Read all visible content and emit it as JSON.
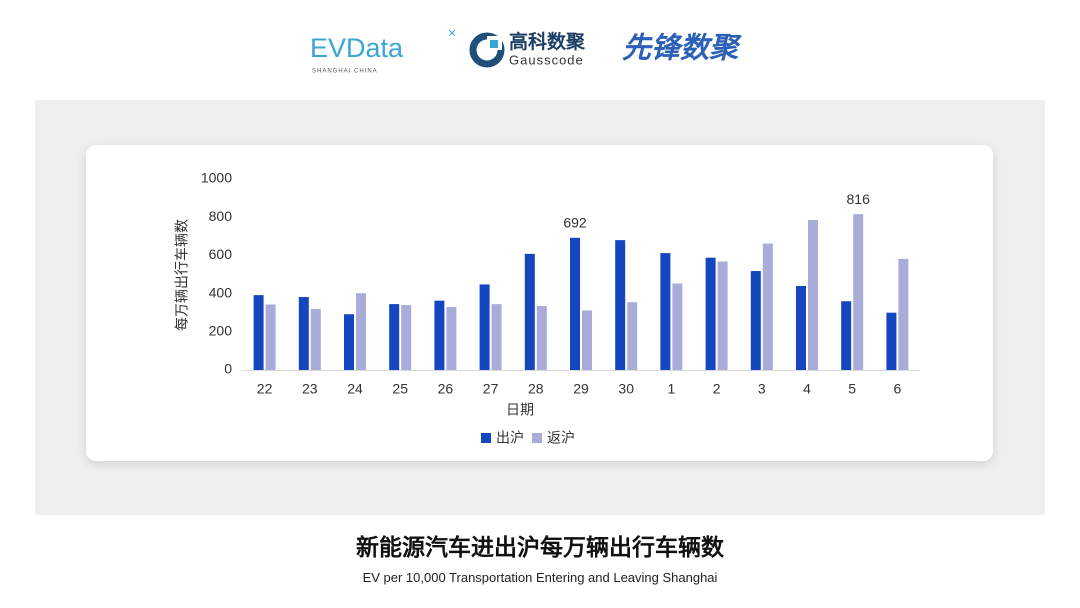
{
  "logos": {
    "evdata": "EVData",
    "evdata_sub": "SHANGHAI CHINA",
    "gauss": "高科数聚",
    "gauss_sub": "Gausscode",
    "pioneer": "先锋数聚"
  },
  "chart_data": {
    "type": "bar",
    "xlabel": "日期",
    "ylabel": "每万辆出行车辆数",
    "categories": [
      "22",
      "23",
      "24",
      "25",
      "26",
      "27",
      "28",
      "29",
      "30",
      "1",
      "2",
      "3",
      "4",
      "5",
      "6"
    ],
    "series": [
      {
        "name": "出沪",
        "color": "#1446c0",
        "values": [
          392,
          382,
          292,
          345,
          363,
          448,
          608,
          692,
          680,
          612,
          588,
          518,
          440,
          360,
          300
        ],
        "value_labels": [
          null,
          null,
          null,
          null,
          null,
          null,
          null,
          "692",
          null,
          null,
          null,
          null,
          null,
          null,
          null
        ]
      },
      {
        "name": "返沪",
        "color": "#a9acd9",
        "values": [
          343,
          320,
          402,
          340,
          330,
          345,
          335,
          312,
          355,
          453,
          568,
          662,
          785,
          816,
          582
        ],
        "value_labels": [
          null,
          null,
          null,
          null,
          null,
          null,
          null,
          null,
          null,
          null,
          null,
          null,
          null,
          "816",
          null
        ]
      }
    ],
    "ylim": [
      0,
      1000
    ],
    "yticks": [
      0,
      200,
      400,
      600,
      800,
      1000
    ],
    "grid": false,
    "legend": "bottom"
  },
  "caption": {
    "title": "新能源汽车进出沪每万辆出行车辆数",
    "subtitle": "EV per 10,000 Transportation Entering and Leaving Shanghai"
  }
}
